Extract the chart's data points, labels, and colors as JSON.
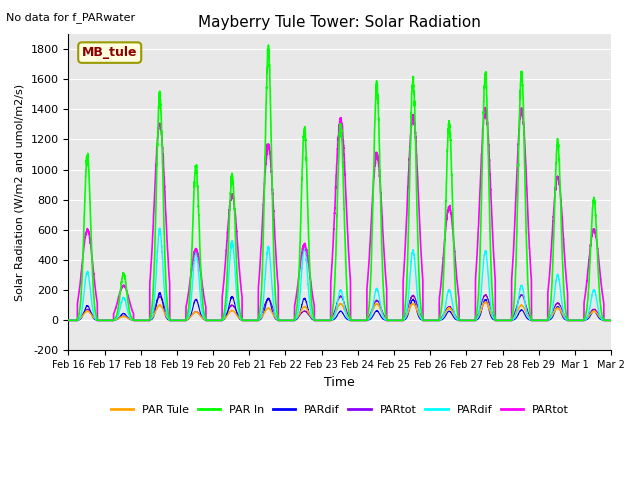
{
  "title": "Mayberry Tule Tower: Solar Radiation",
  "subtitle": "No data for f_PARwater",
  "ylabel": "Solar Radiation (W/m2 and umol/m2/s)",
  "xlabel": "Time",
  "ylim": [
    -200,
    1900
  ],
  "yticks": [
    -200,
    0,
    200,
    400,
    600,
    800,
    1000,
    1200,
    1400,
    1600,
    1800
  ],
  "legend_labels": [
    "PAR Tule",
    "PAR In",
    "PARdif",
    "PARtot",
    "PARdif",
    "PARtot"
  ],
  "legend_colors": [
    "#FFA500",
    "#00FF00",
    "#0000FF",
    "#8B00FF",
    "#00FFFF",
    "#FF00FF"
  ],
  "box_label": "MB_tule",
  "box_color": "#8B0000",
  "box_bg": "#FFFFE0",
  "axes_bg": "#E8E8E8",
  "x_dates": [
    "Feb 16",
    "Feb 17",
    "Feb 18",
    "Feb 19",
    "Feb 20",
    "Feb 21",
    "Feb 22",
    "Feb 23",
    "Feb 24",
    "Feb 25",
    "Feb 26",
    "Feb 27",
    "Feb 28",
    "Feb 29",
    "Mar 1",
    "Mar 2"
  ],
  "series_colors": {
    "PAR_tule": "#FFA500",
    "PAR_in": "#00FF00",
    "PARdif_blue": "#0000FF",
    "PARtot_purple": "#9900CC",
    "PARdif_cyan": "#00FFFF",
    "PARtot_magenta": "#FF00FF"
  },
  "n_days": 15,
  "pts_per_day": 288,
  "day_start": 0.25,
  "day_end": 0.8,
  "green_peaks": [
    1090,
    310,
    1490,
    1020,
    960,
    1780,
    1260,
    1300,
    1570,
    1590,
    1300,
    1640,
    1640,
    1180,
    800
  ],
  "magenta_peaks": [
    600,
    230,
    1310,
    470,
    830,
    1160,
    500,
    1330,
    1100,
    1360,
    750,
    1400,
    1400,
    950,
    600
  ],
  "cyan_peaks": [
    320,
    150,
    600,
    460,
    520,
    480,
    480,
    200,
    210,
    460,
    200,
    460,
    230,
    300,
    200
  ],
  "orange_peaks": [
    60,
    25,
    100,
    55,
    65,
    80,
    90,
    110,
    110,
    110,
    80,
    120,
    100,
    80,
    60
  ]
}
